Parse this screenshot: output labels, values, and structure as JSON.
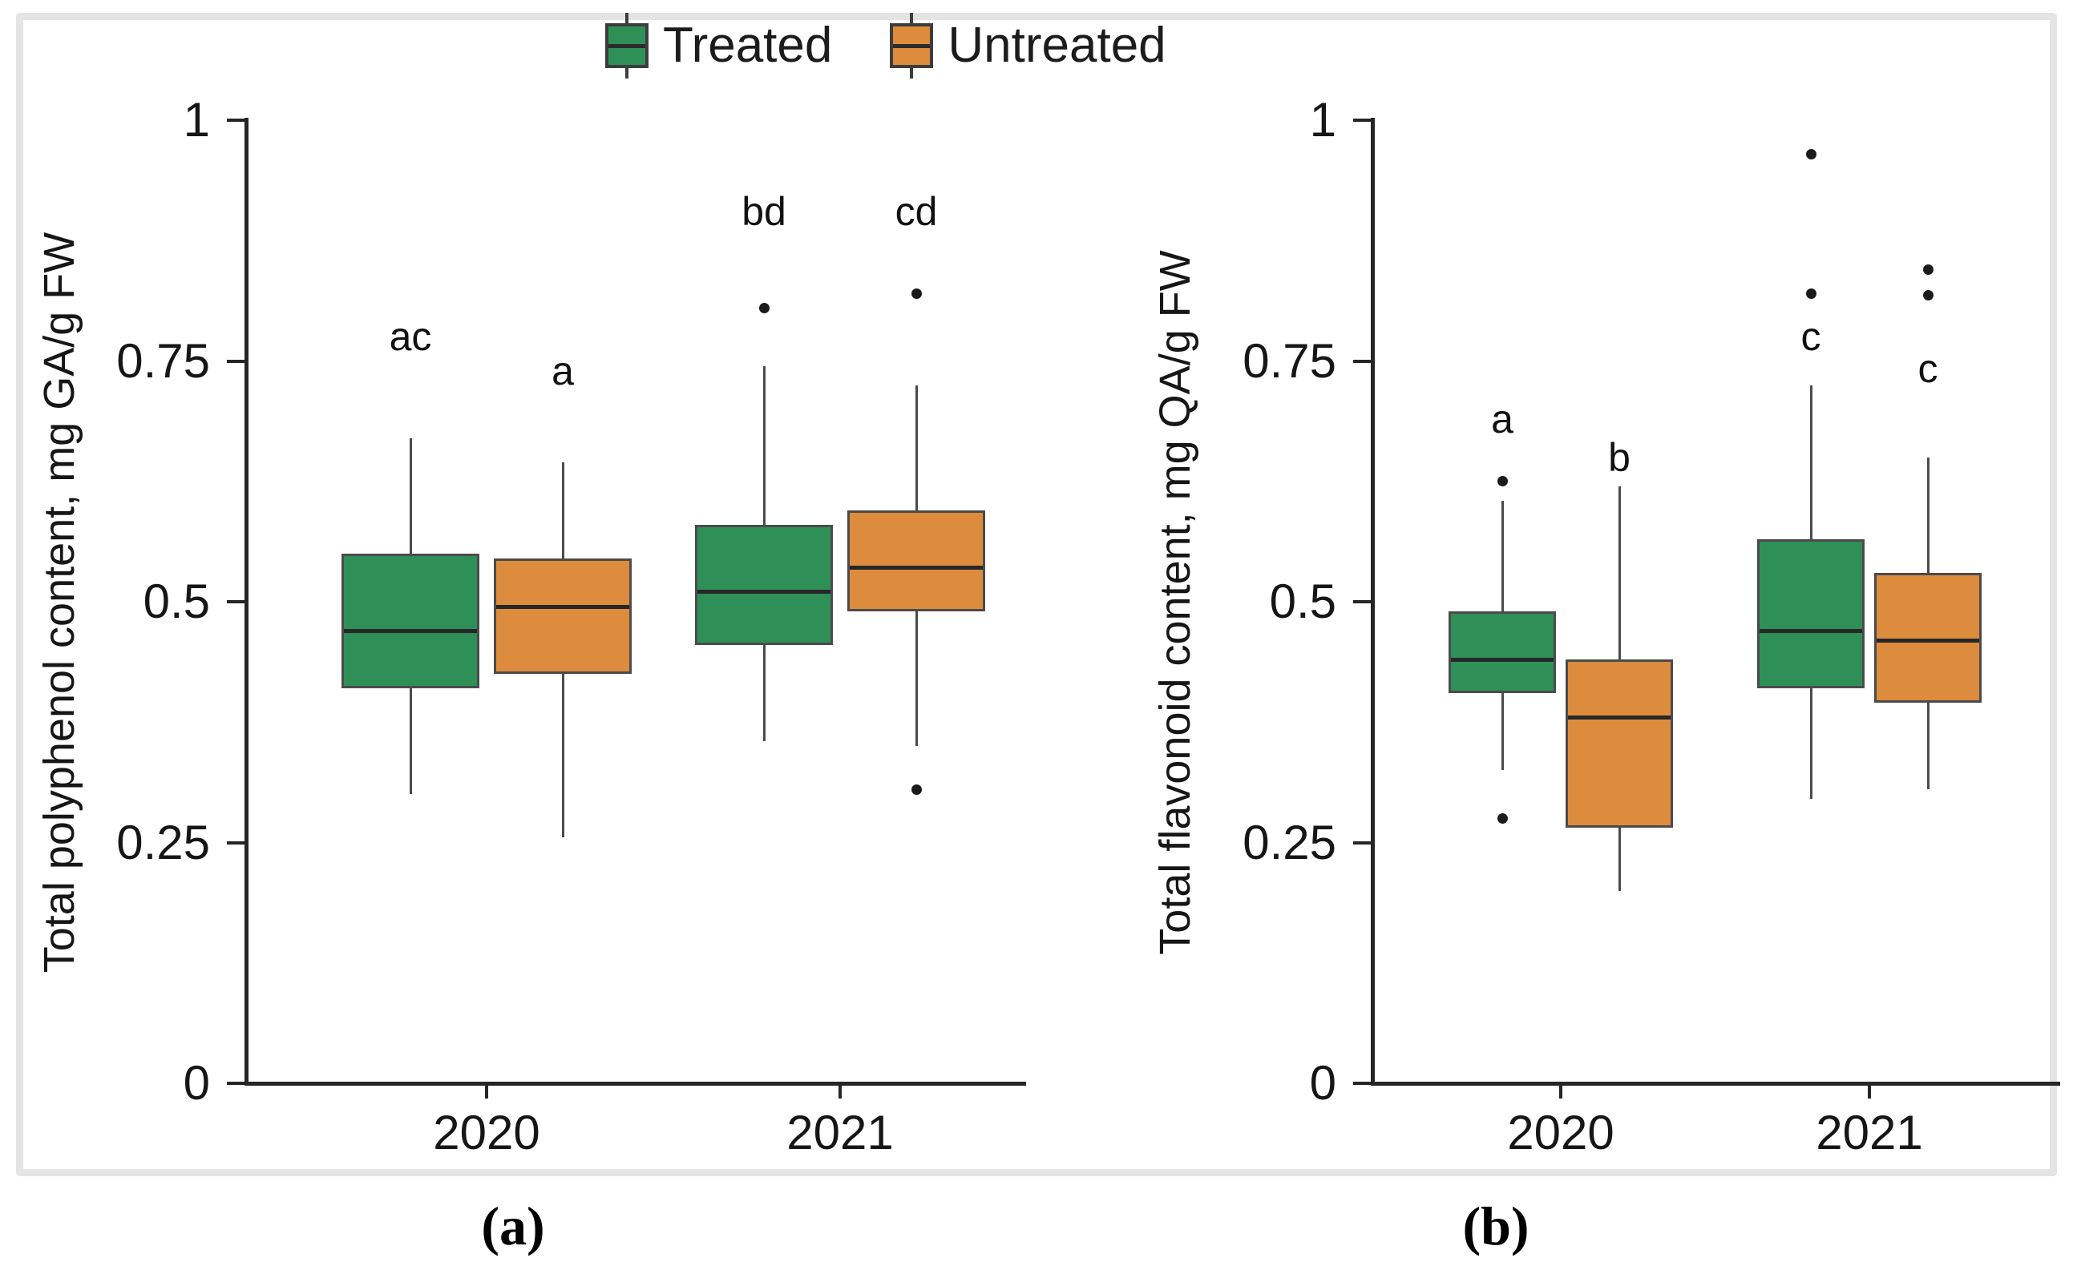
{
  "figure": {
    "background": "#ffffff",
    "border_color": "#e4e4e4"
  },
  "legend": {
    "position": "top-center",
    "items": [
      {
        "label": "Treated",
        "color": "#2e9057"
      },
      {
        "label": "Untreated",
        "color": "#dd8b3d"
      }
    ]
  },
  "captions": {
    "a": "(a)",
    "b": "(b)"
  },
  "chart_data": [
    {
      "type": "boxplot",
      "panel": "a",
      "caption": "(a)",
      "title": "",
      "xlabel": "",
      "ylabel": "Total polyphenol content, mg GA/g FW",
      "ylim": [
        0,
        1
      ],
      "yticks": [
        0,
        0.25,
        0.5,
        0.75,
        1
      ],
      "ytick_labels": [
        "0",
        "0.25",
        "0.5",
        "0.75",
        "1"
      ],
      "categories": [
        "2020",
        "2021"
      ],
      "grid": false,
      "legend_position": "top",
      "series": [
        {
          "name": "Treated",
          "color": "#2e9057",
          "boxes": [
            {
              "category": "2020",
              "whisker_low": 0.3,
              "q1": 0.41,
              "median": 0.47,
              "q3": 0.55,
              "whisker_high": 0.67,
              "outliers": [],
              "sig_letter": "ac",
              "sig_letter_y": 0.775
            },
            {
              "category": "2021",
              "whisker_low": 0.355,
              "q1": 0.455,
              "median": 0.51,
              "q3": 0.58,
              "whisker_high": 0.745,
              "outliers": [
                0.805
              ],
              "sig_letter": "bd",
              "sig_letter_y": 0.905
            }
          ]
        },
        {
          "name": "Untreated",
          "color": "#dd8b3d",
          "boxes": [
            {
              "category": "2020",
              "whisker_low": 0.255,
              "q1": 0.425,
              "median": 0.495,
              "q3": 0.545,
              "whisker_high": 0.645,
              "outliers": [],
              "sig_letter": "a",
              "sig_letter_y": 0.74
            },
            {
              "category": "2021",
              "whisker_low": 0.35,
              "q1": 0.49,
              "median": 0.535,
              "q3": 0.595,
              "whisker_high": 0.725,
              "outliers": [
                0.82,
                0.305
              ],
              "sig_letter": "cd",
              "sig_letter_y": 0.905
            }
          ]
        }
      ]
    },
    {
      "type": "boxplot",
      "panel": "b",
      "caption": "(b)",
      "title": "",
      "xlabel": "",
      "ylabel": "Total flavonoid content, mg QA/g FW",
      "ylim": [
        0,
        1
      ],
      "yticks": [
        0,
        0.25,
        0.5,
        0.75,
        1
      ],
      "ytick_labels": [
        "0",
        "0.25",
        "0.5",
        "0.75",
        "1"
      ],
      "categories": [
        "2020",
        "2021"
      ],
      "grid": false,
      "legend_position": "top",
      "series": [
        {
          "name": "Treated",
          "color": "#2e9057",
          "boxes": [
            {
              "category": "2020",
              "whisker_low": 0.325,
              "q1": 0.405,
              "median": 0.44,
              "q3": 0.49,
              "whisker_high": 0.605,
              "outliers": [
                0.625,
                0.275
              ],
              "sig_letter": "a",
              "sig_letter_y": 0.69
            },
            {
              "category": "2021",
              "whisker_low": 0.295,
              "q1": 0.41,
              "median": 0.47,
              "q3": 0.565,
              "whisker_high": 0.725,
              "outliers": [
                0.965,
                0.82
              ],
              "sig_letter": "c",
              "sig_letter_y": 0.775
            }
          ]
        },
        {
          "name": "Untreated",
          "color": "#dd8b3d",
          "boxes": [
            {
              "category": "2020",
              "whisker_low": 0.2,
              "q1": 0.265,
              "median": 0.38,
              "q3": 0.44,
              "whisker_high": 0.62,
              "outliers": [],
              "sig_letter": "b",
              "sig_letter_y": 0.65
            },
            {
              "category": "2021",
              "whisker_low": 0.305,
              "q1": 0.395,
              "median": 0.46,
              "q3": 0.53,
              "whisker_high": 0.65,
              "outliers": [
                0.845,
                0.818
              ],
              "sig_letter": "c",
              "sig_letter_y": 0.742
            }
          ]
        }
      ]
    }
  ]
}
